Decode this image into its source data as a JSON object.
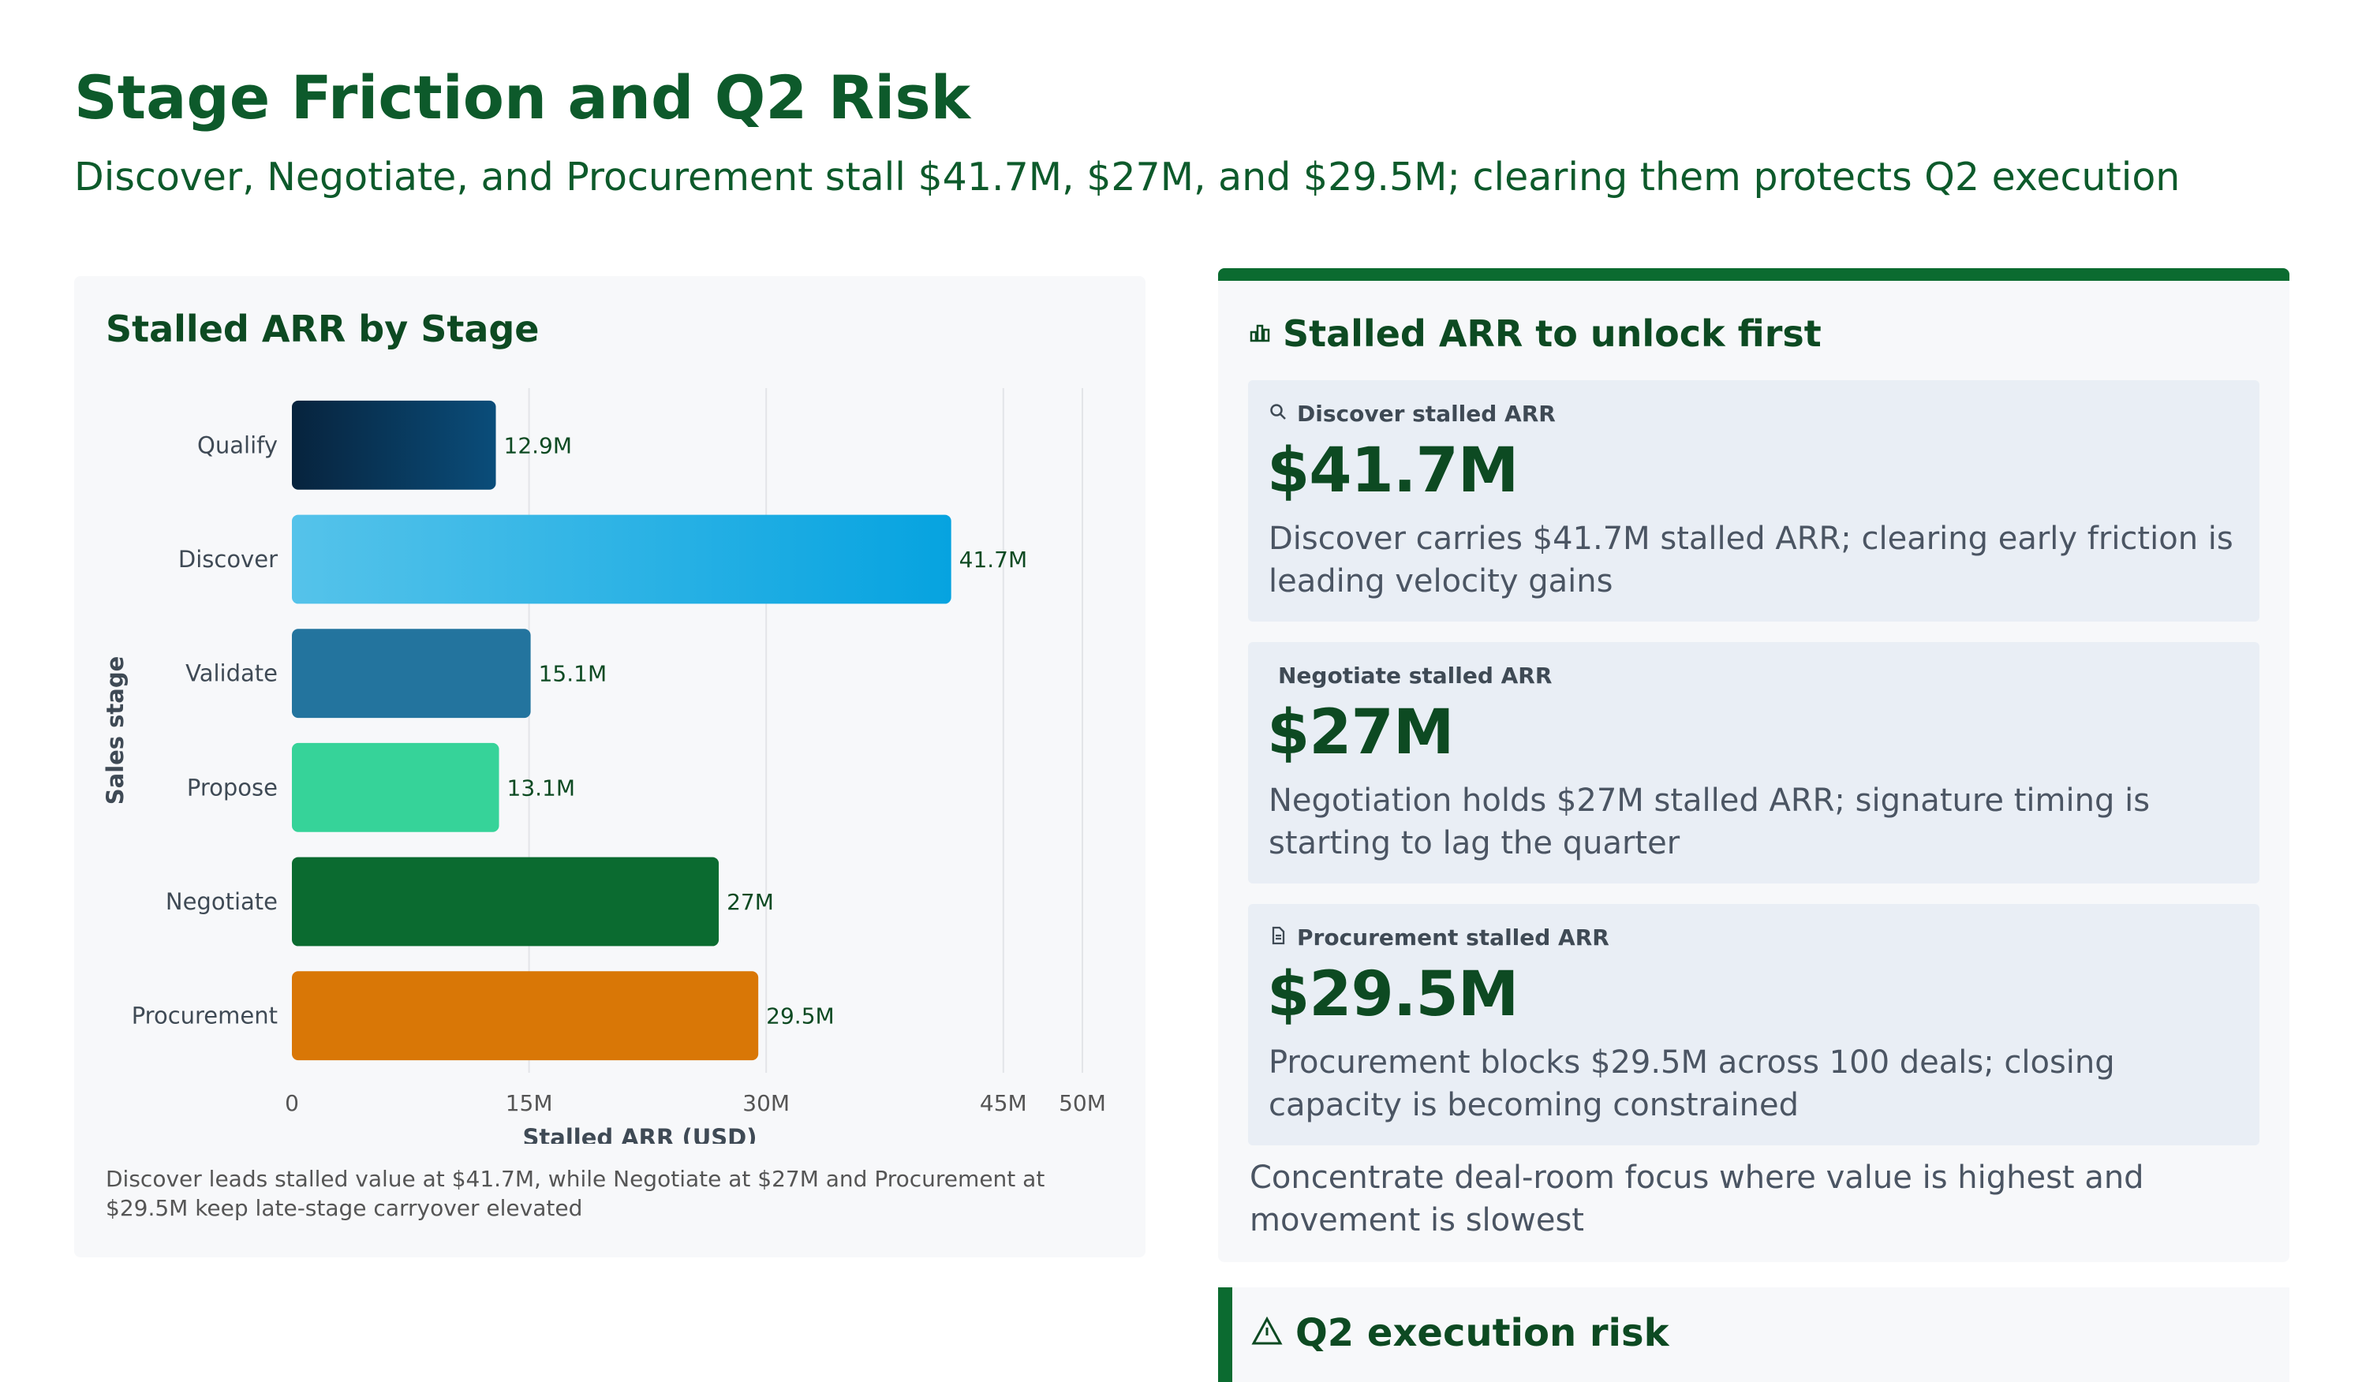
{
  "header": {
    "title": "Stage Friction and Q2 Risk",
    "subtitle": "Discover, Negotiate, and Procurement stall $41.7M, $27M, and $29.5M; clearing them protects Q2 execution"
  },
  "chart_card": {
    "note": "Discover leads stalled value at $41.7M, while Negotiate at $27M and Procurement at $29.5M keep late-stage carryover elevated"
  },
  "chart_data": {
    "type": "bar",
    "orientation": "horizontal",
    "title": "Stalled ARR by Stage",
    "xlabel": "Stalled ARR (USD)",
    "ylabel": "Sales stage",
    "categories": [
      "Qualify",
      "Discover",
      "Validate",
      "Propose",
      "Negotiate",
      "Procurement"
    ],
    "values": [
      12.9,
      41.7,
      15.1,
      13.1,
      27,
      29.5
    ],
    "data_labels": [
      "12.9M",
      "41.7M",
      "15.1M",
      "13.1M",
      "27M",
      "29.5M"
    ],
    "colors": [
      "#0a4d7a",
      "#06a3e0",
      "#23749e",
      "#36d399",
      "#0b6b30",
      "#d97706"
    ],
    "gradient_starts": [
      "#07233d",
      "#55c3ea",
      "#23749e",
      "#36d399",
      "#0b6b30",
      "#d97706"
    ],
    "x_ticks": [
      0,
      15,
      30,
      45,
      50
    ],
    "x_tick_labels": [
      "0",
      "15M",
      "30M",
      "45M",
      "50M"
    ],
    "xlim": [
      0,
      50
    ],
    "grid": true
  },
  "panel": {
    "title": "Stalled ARR to unlock first",
    "icon": "bar-chart-icon",
    "kpis": [
      {
        "icon": "search-icon",
        "label": "Discover stalled ARR",
        "value": "$41.7M",
        "desc": "Discover carries $41.7M stalled ARR; clearing early friction is leading velocity gains"
      },
      {
        "icon": "",
        "label": "Negotiate stalled ARR",
        "value": "$27M",
        "desc": "Negotiation holds $27M stalled ARR; signature timing is starting to lag the quarter"
      },
      {
        "icon": "document-icon",
        "label": "Procurement stalled ARR",
        "value": "$29.5M",
        "desc": "Procurement blocks $29.5M across 100 deals; closing capacity is becoming constrained"
      }
    ],
    "note": "Concentrate deal-room focus where value is highest and movement is slowest"
  },
  "risk_card": {
    "title": "Q2 execution risk",
    "icon": "warning-icon"
  }
}
